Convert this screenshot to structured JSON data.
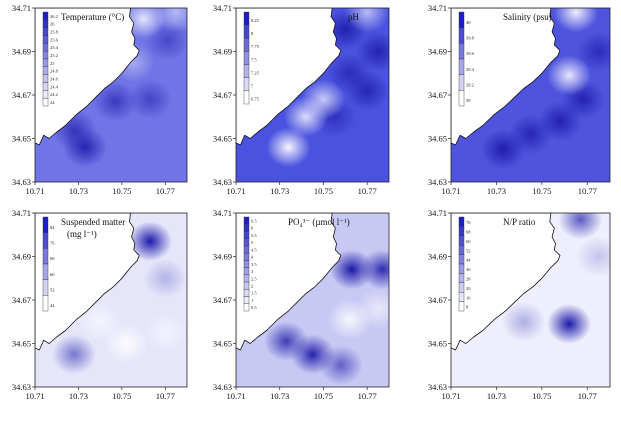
{
  "figure": {
    "x_ticks": [
      "10.71",
      "10.73",
      "10.75",
      "10.77"
    ],
    "y_ticks": [
      "34.63",
      "34.65",
      "34.67",
      "34.69",
      "34.71"
    ]
  },
  "chart_data": [
    {
      "type": "heatmap",
      "title": "Temperature (°C)",
      "xlim": [
        10.71,
        10.78
      ],
      "ylim": [
        34.63,
        34.71
      ],
      "legend_ticks": [
        "26.2",
        "26",
        "25.8",
        "25.6",
        "25.4",
        "25.2",
        "25",
        "24.8",
        "24.6",
        "24.4",
        "24.2",
        "24"
      ],
      "hotspots": [
        {
          "x": 10.733,
          "y": 34.646,
          "v": 0.9
        },
        {
          "x": 10.728,
          "y": 34.654,
          "v": 0.7
        },
        {
          "x": 10.747,
          "y": 34.667,
          "v": 0.65
        },
        {
          "x": 10.763,
          "y": 34.668,
          "v": 0.55
        },
        {
          "x": 10.771,
          "y": 34.695,
          "v": 0.5
        }
      ],
      "coolspots": [
        {
          "x": 10.76,
          "y": 34.705,
          "v": 0.8
        },
        {
          "x": 10.775,
          "y": 34.708,
          "v": 0.5
        },
        {
          "x": 10.755,
          "y": 34.685,
          "v": 0.4
        }
      ]
    },
    {
      "type": "heatmap",
      "title": "pH",
      "xlim": [
        10.71,
        10.78
      ],
      "ylim": [
        34.63,
        34.71
      ],
      "legend_ticks": [
        "8.25",
        "8",
        "7.75",
        "7.5",
        "7.25",
        "7",
        "6.75"
      ],
      "hotspots": [
        {
          "x": 10.76,
          "y": 34.7,
          "v": 0.9
        },
        {
          "x": 10.775,
          "y": 34.69,
          "v": 0.85
        },
        {
          "x": 10.77,
          "y": 34.672,
          "v": 0.8
        },
        {
          "x": 10.762,
          "y": 34.68,
          "v": 0.7
        },
        {
          "x": 10.755,
          "y": 34.66,
          "v": 0.6
        }
      ],
      "coolspots": [
        {
          "x": 10.734,
          "y": 34.646,
          "v": 0.95
        },
        {
          "x": 10.742,
          "y": 34.66,
          "v": 0.8
        },
        {
          "x": 10.75,
          "y": 34.668,
          "v": 0.7
        },
        {
          "x": 10.77,
          "y": 34.708,
          "v": 0.6
        }
      ]
    },
    {
      "type": "heatmap",
      "title": "Salinity (psu)",
      "xlim": [
        10.71,
        10.78
      ],
      "ylim": [
        34.63,
        34.71
      ],
      "legend_ticks": [
        "40",
        "39.8",
        "39.6",
        "39.4",
        "39.2",
        "39"
      ],
      "hotspots": [
        {
          "x": 10.733,
          "y": 34.645,
          "v": 0.95
        },
        {
          "x": 10.758,
          "y": 34.658,
          "v": 0.9
        },
        {
          "x": 10.768,
          "y": 34.668,
          "v": 0.85
        },
        {
          "x": 10.775,
          "y": 34.69,
          "v": 0.7
        },
        {
          "x": 10.745,
          "y": 34.652,
          "v": 0.8
        }
      ],
      "coolspots": [
        {
          "x": 10.765,
          "y": 34.708,
          "v": 0.9
        },
        {
          "x": 10.762,
          "y": 34.679,
          "v": 0.85
        }
      ]
    },
    {
      "type": "heatmap",
      "title": "Suspended matter",
      "unit": "(mg l⁻¹)",
      "xlim": [
        10.71,
        10.78
      ],
      "ylim": [
        34.63,
        34.71
      ],
      "legend_ticks": [
        "84",
        "76",
        "68",
        "60",
        "52",
        "44"
      ],
      "hotspots": [
        {
          "x": 10.763,
          "y": 34.697,
          "v": 1.0
        },
        {
          "x": 10.728,
          "y": 34.645,
          "v": 0.55
        },
        {
          "x": 10.77,
          "y": 34.68,
          "v": 0.25
        }
      ],
      "coolspots": [
        {
          "x": 10.752,
          "y": 34.65,
          "v": 0.9
        },
        {
          "x": 10.74,
          "y": 34.66,
          "v": 0.6
        },
        {
          "x": 10.77,
          "y": 34.655,
          "v": 0.5
        }
      ]
    },
    {
      "type": "heatmap",
      "title": "PO₄³⁻ (µmol l⁻¹)",
      "xlim": [
        10.71,
        10.78
      ],
      "ylim": [
        34.63,
        34.71
      ],
      "legend_ticks": [
        "6.5",
        "6",
        "5.5",
        "5",
        "4.5",
        "4",
        "3.5",
        "3",
        "2.5",
        "2",
        "1.5",
        "1",
        "0.5"
      ],
      "hotspots": [
        {
          "x": 10.763,
          "y": 34.684,
          "v": 1.0
        },
        {
          "x": 10.777,
          "y": 34.684,
          "v": 0.9
        },
        {
          "x": 10.745,
          "y": 34.645,
          "v": 0.95
        },
        {
          "x": 10.733,
          "y": 34.651,
          "v": 0.8
        },
        {
          "x": 10.758,
          "y": 34.64,
          "v": 0.6
        }
      ],
      "coolspots": [
        {
          "x": 10.762,
          "y": 34.661,
          "v": 0.85
        },
        {
          "x": 10.775,
          "y": 34.666,
          "v": 0.6
        }
      ]
    },
    {
      "type": "heatmap",
      "title": "N/P ratio",
      "xlim": [
        10.71,
        10.78
      ],
      "ylim": [
        34.63,
        34.71
      ],
      "legend_ticks": [
        "76",
        "68",
        "60",
        "52",
        "44",
        "36",
        "28",
        "20",
        "16",
        "8"
      ],
      "hotspots": [
        {
          "x": 10.762,
          "y": 34.659,
          "v": 1.0
        },
        {
          "x": 10.767,
          "y": 34.707,
          "v": 0.7
        },
        {
          "x": 10.742,
          "y": 34.66,
          "v": 0.3
        },
        {
          "x": 10.775,
          "y": 34.69,
          "v": 0.2
        }
      ],
      "coolspots": []
    }
  ]
}
